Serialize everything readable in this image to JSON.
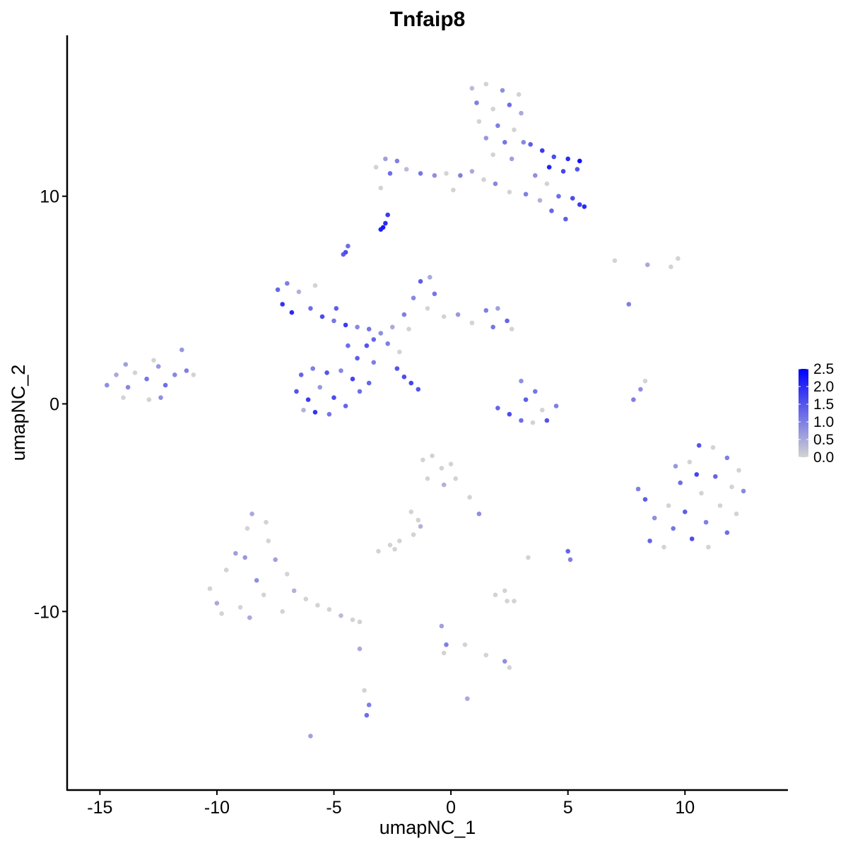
{
  "chart_data": {
    "type": "scatter",
    "title": "Tnfaip8",
    "xlabel": "umapNC_1",
    "ylabel": "umapNC_2",
    "xlim": [
      -16.4,
      14.4
    ],
    "ylim": [
      -18.6,
      17.75
    ],
    "xticks": [
      -15,
      -10,
      -5,
      0,
      5,
      10
    ],
    "xtick_labels": [
      "-15",
      "-10",
      "-5",
      "0",
      "5",
      "10"
    ],
    "yticks": [
      -10,
      0,
      10
    ],
    "ytick_labels": [
      "-10",
      "0",
      "10"
    ],
    "grid": false,
    "legend": {
      "placement": "right",
      "type": "colorbar",
      "range": [
        0,
        2.5
      ],
      "ticks": [
        "0.0",
        "0.5",
        "1.0",
        "1.5",
        "2.0",
        "2.5"
      ],
      "low_color": "#d3d3d3",
      "high_color": "#0000ff"
    },
    "point_fields": [
      "umapNC_1",
      "umapNC_2",
      "expression"
    ],
    "points": [
      [
        0.9,
        15.2,
        0.3
      ],
      [
        1.5,
        15.4,
        0
      ],
      [
        2.2,
        15.1,
        0.8
      ],
      [
        2.9,
        14.9,
        0
      ],
      [
        1.1,
        14.5,
        1.0
      ],
      [
        1.8,
        14.2,
        0
      ],
      [
        2.5,
        14.4,
        1.2
      ],
      [
        3.0,
        14.0,
        0.5
      ],
      [
        1.2,
        13.6,
        0
      ],
      [
        2.0,
        13.4,
        1.0
      ],
      [
        2.7,
        13.2,
        0
      ],
      [
        1.5,
        12.8,
        0.7
      ],
      [
        2.3,
        12.6,
        1.1
      ],
      [
        3.1,
        12.6,
        0.9
      ],
      [
        1.8,
        12.0,
        0
      ],
      [
        2.6,
        11.8,
        0.6
      ],
      [
        3.4,
        12.5,
        1.4
      ],
      [
        3.9,
        12.2,
        1.8
      ],
      [
        4.4,
        11.9,
        1.6
      ],
      [
        5.0,
        11.8,
        2.0
      ],
      [
        5.5,
        11.7,
        2.3
      ],
      [
        4.2,
        11.4,
        2.1
      ],
      [
        4.8,
        11.2,
        1.7
      ],
      [
        5.4,
        11.3,
        1.5
      ],
      [
        3.6,
        11.0,
        0.8
      ],
      [
        4.1,
        10.6,
        0
      ],
      [
        4.6,
        10.0,
        1.2
      ],
      [
        5.2,
        9.9,
        1.6
      ],
      [
        5.7,
        9.5,
        2.0
      ],
      [
        4.3,
        9.3,
        1.3
      ],
      [
        4.9,
        8.9,
        1.4
      ],
      [
        5.5,
        9.6,
        1.8
      ],
      [
        3.8,
        9.8,
        0.4
      ],
      [
        -3.2,
        11.4,
        0
      ],
      [
        -2.8,
        11.8,
        0.6
      ],
      [
        -2.3,
        11.7,
        1.0
      ],
      [
        -2.6,
        11.1,
        1.2
      ],
      [
        -1.9,
        11.3,
        0.3
      ],
      [
        -1.3,
        11.1,
        1.1
      ],
      [
        -0.7,
        11.0,
        0.8
      ],
      [
        -0.2,
        11.1,
        0
      ],
      [
        0.4,
        11.0,
        1.0
      ],
      [
        0.9,
        11.2,
        0.5
      ],
      [
        1.4,
        10.8,
        0
      ],
      [
        1.9,
        10.6,
        0.9
      ],
      [
        2.5,
        10.2,
        0
      ],
      [
        3.2,
        10.1,
        1.0
      ],
      [
        -3.0,
        10.4,
        0
      ],
      [
        0.1,
        10.3,
        0
      ],
      [
        -2.9,
        8.5,
        2.2
      ],
      [
        -2.8,
        8.7,
        2.0
      ],
      [
        -2.7,
        9.1,
        1.8
      ],
      [
        -3.0,
        8.4,
        2.1
      ],
      [
        -4.5,
        7.3,
        1.6
      ],
      [
        -4.4,
        7.6,
        1.2
      ],
      [
        -4.6,
        7.2,
        1.4
      ],
      [
        -3.3,
        3.1,
        1.3
      ],
      [
        -3.0,
        3.4,
        0.8
      ],
      [
        -3.6,
        2.8,
        1.5
      ],
      [
        -2.7,
        2.9,
        1.0
      ],
      [
        -3.5,
        3.6,
        1.1
      ],
      [
        -2.5,
        3.7,
        0.5
      ],
      [
        -7.4,
        5.5,
        1.3
      ],
      [
        -7.0,
        5.8,
        1.0
      ],
      [
        -6.5,
        5.4,
        0.4
      ],
      [
        -7.2,
        4.8,
        1.9
      ],
      [
        -6.8,
        4.4,
        2.0
      ],
      [
        -6.0,
        4.6,
        1.2
      ],
      [
        -5.5,
        4.2,
        1.6
      ],
      [
        -5.0,
        4.0,
        1.1
      ],
      [
        -4.5,
        3.8,
        1.8
      ],
      [
        -4.0,
        3.7,
        0.9
      ],
      [
        -5.8,
        5.7,
        0
      ],
      [
        -4.9,
        4.6,
        1.4
      ],
      [
        -6.4,
        1.4,
        1.3
      ],
      [
        -5.9,
        1.7,
        1.0
      ],
      [
        -5.3,
        1.5,
        1.5
      ],
      [
        -4.7,
        1.6,
        0.9
      ],
      [
        -4.2,
        1.2,
        1.7
      ],
      [
        -3.9,
        0.6,
        1.2
      ],
      [
        -6.6,
        0.6,
        1.5
      ],
      [
        -6.1,
        0.2,
        1.8
      ],
      [
        -5.6,
        0.8,
        0.7
      ],
      [
        -5.0,
        0.3,
        1.6
      ],
      [
        -4.5,
        -0.1,
        1.3
      ],
      [
        -5.8,
        -0.4,
        1.9
      ],
      [
        -5.2,
        -0.5,
        1.1
      ],
      [
        -6.3,
        -0.3,
        0.4
      ],
      [
        -4.0,
        2.2,
        1.4
      ],
      [
        -4.4,
        2.8,
        1.2
      ],
      [
        -1.6,
        5.1,
        0.9
      ],
      [
        -1.3,
        5.9,
        1.4
      ],
      [
        -0.9,
        6.1,
        0.5
      ],
      [
        -0.7,
        5.3,
        1.1
      ],
      [
        -1.0,
        4.6,
        0
      ],
      [
        -2.0,
        4.3,
        1.0
      ],
      [
        -0.3,
        4.2,
        0
      ],
      [
        0.3,
        4.3,
        0.7
      ],
      [
        0.9,
        3.9,
        0
      ],
      [
        1.5,
        4.5,
        1.0
      ],
      [
        2.0,
        4.6,
        0.6
      ],
      [
        2.4,
        4.0,
        1.3
      ],
      [
        2.6,
        3.6,
        0
      ],
      [
        1.8,
        3.7,
        1.1
      ],
      [
        -1.8,
        3.6,
        0
      ],
      [
        -2.2,
        2.5,
        0
      ],
      [
        -2.3,
        1.7,
        1.5
      ],
      [
        -2.0,
        1.3,
        1.6
      ],
      [
        -1.7,
        1.0,
        1.7
      ],
      [
        -1.4,
        0.7,
        1.5
      ],
      [
        -3.3,
        2.0,
        1.0
      ],
      [
        -3.5,
        1.0,
        1.3
      ],
      [
        -14.7,
        0.9,
        0.8
      ],
      [
        -14.3,
        1.4,
        0.5
      ],
      [
        -13.8,
        0.8,
        0.9
      ],
      [
        -13.5,
        1.5,
        0
      ],
      [
        -13.0,
        1.2,
        1.1
      ],
      [
        -12.5,
        1.8,
        0.7
      ],
      [
        -12.2,
        0.9,
        1.2
      ],
      [
        -11.8,
        1.4,
        0.9
      ],
      [
        -11.3,
        1.6,
        1.0
      ],
      [
        -11.0,
        1.4,
        0
      ],
      [
        -12.9,
        0.2,
        0
      ],
      [
        -13.9,
        1.9,
        0.6
      ],
      [
        -12.7,
        2.1,
        0
      ],
      [
        -11.5,
        2.6,
        0.7
      ],
      [
        -12.4,
        0.3,
        0.8
      ],
      [
        -14.0,
        0.3,
        0
      ],
      [
        2.0,
        -0.2,
        1.3
      ],
      [
        2.5,
        -0.5,
        1.6
      ],
      [
        3.0,
        -0.8,
        1.2
      ],
      [
        3.5,
        -0.9,
        0
      ],
      [
        4.1,
        -0.8,
        1.5
      ],
      [
        4.5,
        -0.1,
        1.0
      ],
      [
        3.2,
        0.2,
        1.4
      ],
      [
        3.6,
        0.6,
        1.1
      ],
      [
        3.0,
        1.1,
        0.8
      ],
      [
        3.9,
        -0.3,
        0
      ],
      [
        8.0,
        -4.1,
        1.0
      ],
      [
        8.3,
        -4.6,
        1.4
      ],
      [
        8.7,
        -5.5,
        0.8
      ],
      [
        8.5,
        -6.6,
        1.3
      ],
      [
        9.1,
        -6.9,
        0
      ],
      [
        9.5,
        -6.0,
        1.1
      ],
      [
        9.3,
        -4.9,
        0
      ],
      [
        9.8,
        -3.8,
        1.2
      ],
      [
        10.2,
        -2.8,
        0
      ],
      [
        10.6,
        -2.0,
        1.5
      ],
      [
        11.2,
        -2.1,
        0
      ],
      [
        11.8,
        -2.6,
        1.0
      ],
      [
        12.3,
        -3.2,
        0
      ],
      [
        12.5,
        -4.2,
        0.9
      ],
      [
        12.2,
        -5.3,
        0
      ],
      [
        11.8,
        -6.2,
        1.2
      ],
      [
        11.0,
        -6.9,
        0
      ],
      [
        10.3,
        -6.5,
        1.6
      ],
      [
        10.0,
        -5.2,
        1.4
      ],
      [
        10.7,
        -4.3,
        0
      ],
      [
        11.3,
        -3.5,
        1.3
      ],
      [
        11.5,
        -4.9,
        0
      ],
      [
        10.5,
        -3.4,
        1.7
      ],
      [
        9.6,
        -3.0,
        0.7
      ],
      [
        10.9,
        -5.7,
        1.0
      ],
      [
        12.0,
        -4.0,
        0
      ],
      [
        -1.2,
        -2.7,
        0
      ],
      [
        -0.8,
        -2.5,
        0
      ],
      [
        -0.4,
        -3.1,
        0
      ],
      [
        0.0,
        -2.9,
        0
      ],
      [
        -1.0,
        -3.6,
        0
      ],
      [
        -0.3,
        -3.9,
        0.4
      ],
      [
        0.2,
        -3.6,
        0
      ],
      [
        0.8,
        -4.5,
        0
      ],
      [
        1.2,
        -5.3,
        0.8
      ],
      [
        -1.7,
        -5.2,
        0
      ],
      [
        -1.4,
        -5.6,
        0
      ],
      [
        -10.3,
        -8.9,
        0
      ],
      [
        -10.0,
        -9.6,
        0.5
      ],
      [
        -9.6,
        -8.0,
        0
      ],
      [
        -9.2,
        -7.2,
        0.6
      ],
      [
        -9.0,
        -9.8,
        0
      ],
      [
        -8.7,
        -6.0,
        0
      ],
      [
        -8.5,
        -5.3,
        0.5
      ],
      [
        -8.3,
        -8.5,
        0.8
      ],
      [
        -8.0,
        -9.2,
        0
      ],
      [
        -7.8,
        -6.6,
        0
      ],
      [
        -7.5,
        -7.5,
        0.6
      ],
      [
        -7.2,
        -10.0,
        0
      ],
      [
        -7.0,
        -8.2,
        0
      ],
      [
        -6.7,
        -9.0,
        0.4
      ],
      [
        -6.2,
        -9.4,
        0
      ],
      [
        -5.7,
        -9.7,
        0
      ],
      [
        -5.2,
        -9.9,
        0
      ],
      [
        -4.7,
        -10.2,
        0.3
      ],
      [
        -4.2,
        -10.4,
        0
      ],
      [
        -3.9,
        -10.5,
        0
      ],
      [
        -9.8,
        -10.1,
        0
      ],
      [
        -8.8,
        -7.4,
        0.7
      ],
      [
        -7.9,
        -5.7,
        0
      ],
      [
        -8.6,
        -10.3,
        0.5
      ],
      [
        -2.6,
        -6.8,
        0
      ],
      [
        -2.4,
        -7.0,
        0
      ],
      [
        -2.2,
        -6.6,
        0
      ],
      [
        -3.1,
        -7.1,
        0
      ],
      [
        1.9,
        -9.2,
        0
      ],
      [
        2.3,
        -9.0,
        0
      ],
      [
        2.7,
        -9.5,
        0
      ],
      [
        2.4,
        -9.5,
        0
      ],
      [
        3.3,
        -7.4,
        0
      ],
      [
        5.0,
        -7.1,
        1.3
      ],
      [
        5.1,
        -7.5,
        1.0
      ],
      [
        -3.6,
        -15.0,
        1.2
      ],
      [
        -3.5,
        -14.5,
        1.0
      ],
      [
        -3.7,
        -13.8,
        0
      ],
      [
        -3.9,
        -11.8,
        0.5
      ],
      [
        -0.4,
        -10.7,
        0.6
      ],
      [
        -0.2,
        -11.6,
        1.0
      ],
      [
        -0.3,
        -12.0,
        0
      ],
      [
        0.6,
        -11.6,
        0
      ],
      [
        1.5,
        -12.1,
        0
      ],
      [
        2.3,
        -12.4,
        0.8
      ],
      [
        2.5,
        -12.7,
        0
      ],
      [
        0.7,
        -14.2,
        0.5
      ],
      [
        -6.0,
        -16.0,
        0.6
      ],
      [
        7.0,
        6.9,
        0
      ],
      [
        8.4,
        6.7,
        0.5
      ],
      [
        9.7,
        7.0,
        0
      ],
      [
        9.4,
        6.6,
        0
      ],
      [
        7.6,
        4.8,
        1.0
      ],
      [
        7.8,
        0.2,
        1.0
      ],
      [
        8.1,
        0.7,
        0.8
      ],
      [
        8.3,
        1.1,
        0
      ],
      [
        -1.3,
        -5.9,
        0.4
      ],
      [
        -1.6,
        -6.3,
        0
      ]
    ]
  }
}
